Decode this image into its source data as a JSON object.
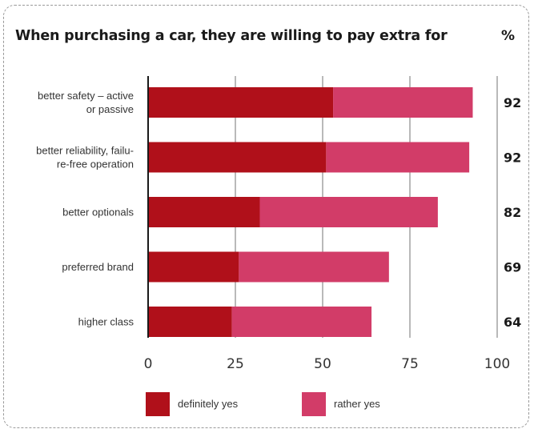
{
  "header": {
    "title": "When purchasing a car, they are willing to pay extra for",
    "percent_label": "%"
  },
  "colors": {
    "definitely_yes": "#b0101a",
    "rather_yes": "#d23c68",
    "grid": "#b9b9b9",
    "axis": "#1a1a1a"
  },
  "chart_data": {
    "type": "bar",
    "orientation": "horizontal",
    "stacked": true,
    "categories": [
      [
        "better safety – active",
        "or passive"
      ],
      [
        "better reliability, failu-",
        "re-free operation"
      ],
      [
        "better optionals"
      ],
      [
        "preferred brand"
      ],
      [
        "higher class"
      ]
    ],
    "series": [
      {
        "name": "definitely yes",
        "values": [
          53,
          51,
          32,
          26,
          24
        ]
      },
      {
        "name": "rather yes",
        "values": [
          40,
          41,
          51,
          43,
          40
        ]
      }
    ],
    "totals": [
      "92",
      "92",
      "82",
      "69",
      "64"
    ],
    "xlim": [
      0,
      100
    ],
    "xticks": [
      "0",
      "25",
      "50",
      "75",
      "100"
    ],
    "xtick_values": [
      0,
      25,
      50,
      75,
      100
    ],
    "grid": true,
    "legend_position": "bottom"
  }
}
